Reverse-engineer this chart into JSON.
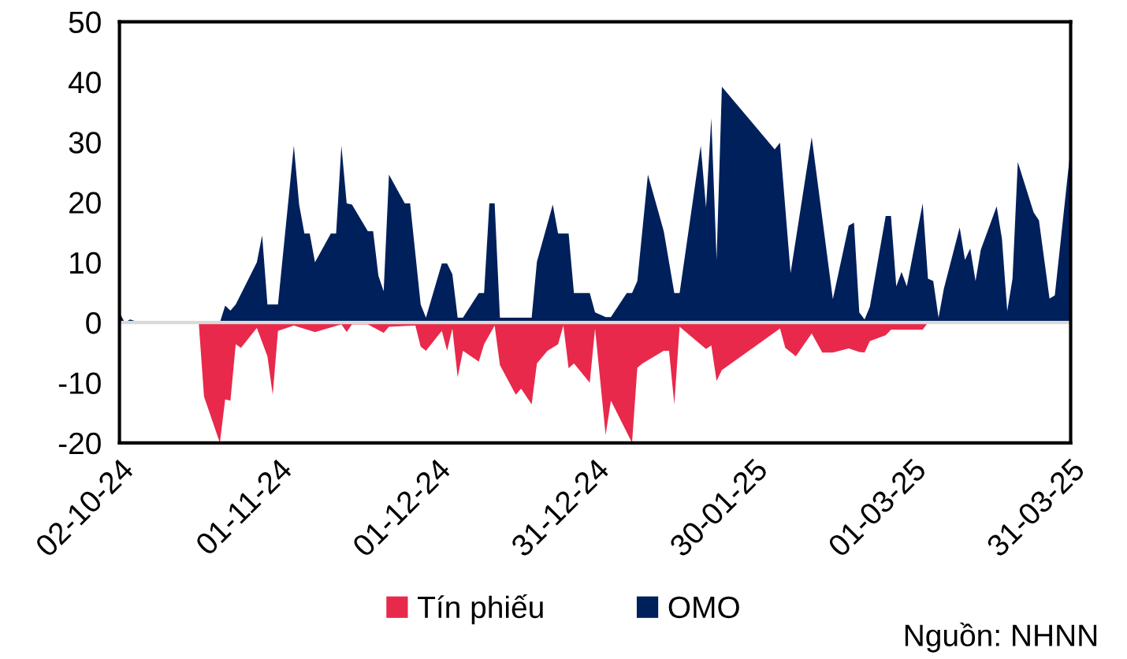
{
  "chart_data": {
    "type": "area",
    "xlim": [
      "2024-10-02",
      "2025-03-31"
    ],
    "xticks": [
      {
        "value": "2024-10-02",
        "label": "02-10-24"
      },
      {
        "value": "2024-11-01",
        "label": "01-11-24"
      },
      {
        "value": "2024-12-01",
        "label": "01-12-24"
      },
      {
        "value": "2024-12-31",
        "label": "31-12-24"
      },
      {
        "value": "2025-01-30",
        "label": "30-01-25"
      },
      {
        "value": "2025-03-01",
        "label": "01-03-25"
      },
      {
        "value": "2025-03-31",
        "label": "31-03-25"
      }
    ],
    "ylim": [
      -20,
      50
    ],
    "yticks": [
      -20,
      -10,
      0,
      10,
      20,
      30,
      40,
      50
    ],
    "grid": false,
    "legend": "bottom",
    "ref_lines": [
      {
        "axis": "y",
        "value": 0,
        "color": "#d9d9d9"
      }
    ],
    "annotations": [
      "Nguồn: NHNN"
    ],
    "series": [
      {
        "name": "Tín phiếu",
        "color": "#e8294b",
        "x": [
          "2024-10-02",
          "2024-10-17",
          "2024-10-18",
          "2024-10-21",
          "2024-10-22",
          "2024-10-23",
          "2024-10-24",
          "2024-10-25",
          "2024-10-28",
          "2024-10-30",
          "2024-10-31",
          "2024-11-01",
          "2024-11-04",
          "2024-11-08",
          "2024-11-13",
          "2024-11-14",
          "2024-11-15",
          "2024-11-18",
          "2024-11-21",
          "2024-11-22",
          "2024-11-27",
          "2024-11-28",
          "2024-11-29",
          "2024-12-02",
          "2024-12-03",
          "2024-12-04",
          "2024-12-05",
          "2024-12-06",
          "2024-12-09",
          "2024-12-10",
          "2024-12-12",
          "2024-12-13",
          "2024-12-16",
          "2024-12-17",
          "2024-12-19",
          "2024-12-20",
          "2024-12-22",
          "2024-12-24",
          "2024-12-25",
          "2024-12-26",
          "2024-12-27",
          "2024-12-30",
          "2024-12-31",
          "2025-01-02",
          "2025-01-03",
          "2025-01-07",
          "2025-01-08",
          "2025-01-09",
          "2025-01-13",
          "2025-01-14",
          "2025-01-15",
          "2025-01-16",
          "2025-01-21",
          "2025-01-22",
          "2025-01-23",
          "2025-01-24",
          "2025-02-04",
          "2025-02-05",
          "2025-02-07",
          "2025-02-10",
          "2025-02-12",
          "2025-02-14",
          "2025-02-17",
          "2025-02-19",
          "2025-02-20",
          "2025-02-21",
          "2025-02-24",
          "2025-02-25",
          "2025-03-03",
          "2025-03-04",
          "2025-03-31"
        ],
        "values": [
          0,
          0,
          -12.3,
          -20,
          -12.8,
          -13,
          -3.6,
          -4.2,
          -0.9,
          -5.6,
          -12,
          -1.4,
          -0.5,
          -1.6,
          -0.3,
          -1.6,
          -0.3,
          -0.3,
          -1.7,
          -0.7,
          -0.5,
          -4,
          -4.7,
          -1.4,
          -4.7,
          -1,
          -9.1,
          -4.7,
          -6.5,
          -3.6,
          -0.5,
          -7.1,
          -12,
          -11,
          -13.6,
          -6.8,
          -4.7,
          -3.6,
          -0.5,
          -7.6,
          -6.8,
          -10,
          -1,
          -18.7,
          -13,
          -20,
          -7.5,
          -6.8,
          -4.7,
          -4.7,
          -13.6,
          -0.7,
          -4.4,
          -3.8,
          -9.7,
          -7.9,
          -1,
          -4.2,
          -5.6,
          -1.8,
          -5,
          -5,
          -4.3,
          -4.9,
          -5,
          -3.1,
          -2.1,
          -1.2,
          -1.2,
          0,
          0
        ]
      },
      {
        "name": "OMO",
        "color": "#00205b",
        "x": [
          "2024-10-02",
          "2024-10-03",
          "2024-10-04",
          "2024-10-06",
          "2024-10-21",
          "2024-10-22",
          "2024-10-23",
          "2024-10-24",
          "2024-10-28",
          "2024-10-29",
          "2024-10-30",
          "2024-11-01",
          "2024-11-04",
          "2024-11-05",
          "2024-11-06",
          "2024-11-07",
          "2024-11-08",
          "2024-11-11",
          "2024-11-12",
          "2024-11-13",
          "2024-11-14",
          "2024-11-15",
          "2024-11-18",
          "2024-11-19",
          "2024-11-20",
          "2024-11-21",
          "2024-11-22",
          "2024-11-25",
          "2024-11-26",
          "2024-11-28",
          "2024-11-29",
          "2024-12-02",
          "2024-12-03",
          "2024-12-04",
          "2024-12-05",
          "2024-12-06",
          "2024-12-09",
          "2024-12-10",
          "2024-12-11",
          "2024-12-12",
          "2024-12-13",
          "2024-12-19",
          "2024-12-20",
          "2024-12-23",
          "2024-12-24",
          "2024-12-26",
          "2024-12-27",
          "2024-12-30",
          "2024-12-31",
          "2025-01-02",
          "2025-01-03",
          "2025-01-06",
          "2025-01-07",
          "2025-01-08",
          "2025-01-10",
          "2025-01-13",
          "2025-01-15",
          "2025-01-16",
          "2025-01-20",
          "2025-01-21",
          "2025-01-22",
          "2025-01-23",
          "2025-01-24",
          "2025-02-03",
          "2025-02-04",
          "2025-02-06",
          "2025-02-10",
          "2025-02-14",
          "2025-02-17",
          "2025-02-18",
          "2025-02-19",
          "2025-02-20",
          "2025-02-21",
          "2025-02-24",
          "2025-02-25",
          "2025-02-26",
          "2025-02-27",
          "2025-02-28",
          "2025-03-03",
          "2025-03-04",
          "2025-03-05",
          "2025-03-06",
          "2025-03-07",
          "2025-03-10",
          "2025-03-11",
          "2025-03-12",
          "2025-03-13",
          "2025-03-14",
          "2025-03-17",
          "2025-03-18",
          "2025-03-19",
          "2025-03-20",
          "2025-03-21",
          "2025-03-24",
          "2025-03-25",
          "2025-03-27",
          "2025-03-28",
          "2025-03-31"
        ],
        "values": [
          1.7,
          0,
          0.5,
          0,
          0,
          2.8,
          2,
          3,
          10,
          14.5,
          3,
          3,
          29.4,
          19.6,
          14.8,
          14.8,
          10,
          14.8,
          14.8,
          29.4,
          19.8,
          19.6,
          15.2,
          15.2,
          7.8,
          5.2,
          24.6,
          19.8,
          19.8,
          3,
          0.8,
          9.8,
          9.8,
          8,
          0.8,
          0.8,
          4.9,
          4.9,
          19.8,
          19.8,
          0.8,
          0.8,
          10.1,
          19.6,
          14.8,
          14.8,
          4.9,
          4.9,
          1.7,
          0.9,
          0.9,
          4.9,
          4.9,
          6.9,
          24.6,
          15.2,
          4.9,
          4.9,
          29.4,
          19.1,
          34,
          10.4,
          39.2,
          28.8,
          29.9,
          8.2,
          30.8,
          3.9,
          16.1,
          16.6,
          1.7,
          0.5,
          2.6,
          17.7,
          17.7,
          6,
          8.4,
          6,
          19.8,
          7.3,
          6.9,
          0.8,
          5.6,
          15.8,
          10.4,
          12.3,
          6.9,
          12.1,
          19.3,
          13.9,
          1.9,
          7.3,
          26.7,
          18.3,
          17,
          4,
          4.5,
          29
        ]
      }
    ]
  }
}
